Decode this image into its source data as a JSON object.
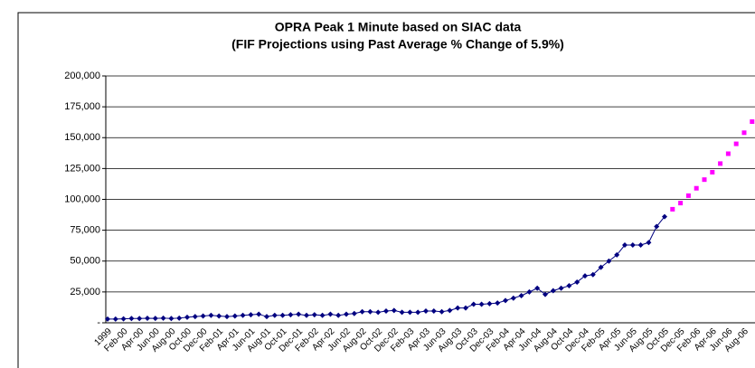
{
  "chart_data": {
    "type": "line",
    "title": "OPRA Peak 1 Minute based on SIAC data",
    "subtitle": "(FIF Projections using Past Average % Change of 5.9%)",
    "categories": [
      "1999",
      null,
      "Feb-00",
      null,
      "Apr-00",
      null,
      "Jun-00",
      null,
      "Aug-00",
      null,
      "Oct-00",
      null,
      "Dec-00",
      null,
      "Feb-01",
      null,
      "Apr-01",
      null,
      "Jun-01",
      null,
      "Aug-01",
      null,
      "Oct-01",
      null,
      "Dec-01",
      null,
      "Feb-02",
      null,
      "Apr-02",
      null,
      "Jun-02",
      null,
      "Aug-02",
      null,
      "Oct-02",
      null,
      "Dec-02",
      null,
      "Feb-03",
      null,
      "Apr-03",
      null,
      "Jun-03",
      null,
      "Aug-03",
      null,
      "Oct-03",
      null,
      "Dec-03",
      null,
      "Feb-04",
      null,
      "Apr-04",
      null,
      "Jun-04",
      null,
      "Aug-04",
      null,
      "Oct-04",
      null,
      "Dec-04",
      null,
      "Feb-05",
      null,
      "Apr-05",
      null,
      "Jun-05",
      null,
      "Aug-05",
      null,
      "Oct-05",
      null,
      "Dec-05",
      null,
      "Feb-06",
      null,
      "Apr-06",
      null,
      "Jun-06",
      null,
      "Aug-06",
      null
    ],
    "series": [
      {
        "color": "#000080",
        "marker": "diamond",
        "line": true,
        "values": [
          3000,
          3000,
          3200,
          3500,
          3500,
          3700,
          3600,
          3800,
          3500,
          3800,
          4500,
          5000,
          5500,
          6000,
          5500,
          5000,
          5500,
          6000,
          6500,
          7000,
          5000,
          6000,
          6000,
          6500,
          7000,
          6000,
          6500,
          6000,
          7000,
          6000,
          7000,
          7500,
          9000,
          9000,
          8500,
          9500,
          10000,
          8500,
          8500,
          8500,
          9500,
          9500,
          9000,
          10000,
          12000,
          12000,
          15000,
          15000,
          15500,
          16000,
          18000,
          20000,
          22000,
          25000,
          28000,
          23000,
          26000,
          28000,
          30000,
          33000,
          38000,
          39000,
          45000,
          50000,
          55000,
          63000,
          63000,
          63000,
          65000,
          78000,
          86000,
          null,
          null,
          null,
          null,
          null,
          null,
          null,
          null,
          null,
          null,
          null
        ]
      },
      {
        "color": "#ff00ff",
        "marker": "square",
        "line": false,
        "values": [
          null,
          null,
          null,
          null,
          null,
          null,
          null,
          null,
          null,
          null,
          null,
          null,
          null,
          null,
          null,
          null,
          null,
          null,
          null,
          null,
          null,
          null,
          null,
          null,
          null,
          null,
          null,
          null,
          null,
          null,
          null,
          null,
          null,
          null,
          null,
          null,
          null,
          null,
          null,
          null,
          null,
          null,
          null,
          null,
          null,
          null,
          null,
          null,
          null,
          null,
          null,
          null,
          null,
          null,
          null,
          null,
          null,
          null,
          null,
          null,
          null,
          null,
          null,
          null,
          null,
          null,
          null,
          null,
          null,
          null,
          null,
          92000,
          97000,
          103000,
          109000,
          116000,
          122000,
          129000,
          137000,
          145000,
          154000,
          163000
        ]
      }
    ],
    "ylim": [
      0,
      200000
    ],
    "yticks": [
      {
        "value": 0,
        "label": "-"
      },
      {
        "value": 25000,
        "label": "25,000"
      },
      {
        "value": 50000,
        "label": "50,000"
      },
      {
        "value": 75000,
        "label": "75,000"
      },
      {
        "value": 100000,
        "label": "100,000"
      },
      {
        "value": 125000,
        "label": "125,000"
      },
      {
        "value": 150000,
        "label": "150,000"
      },
      {
        "value": 175000,
        "label": "175,000"
      },
      {
        "value": 200000,
        "label": "200,000"
      }
    ],
    "grid": true
  }
}
